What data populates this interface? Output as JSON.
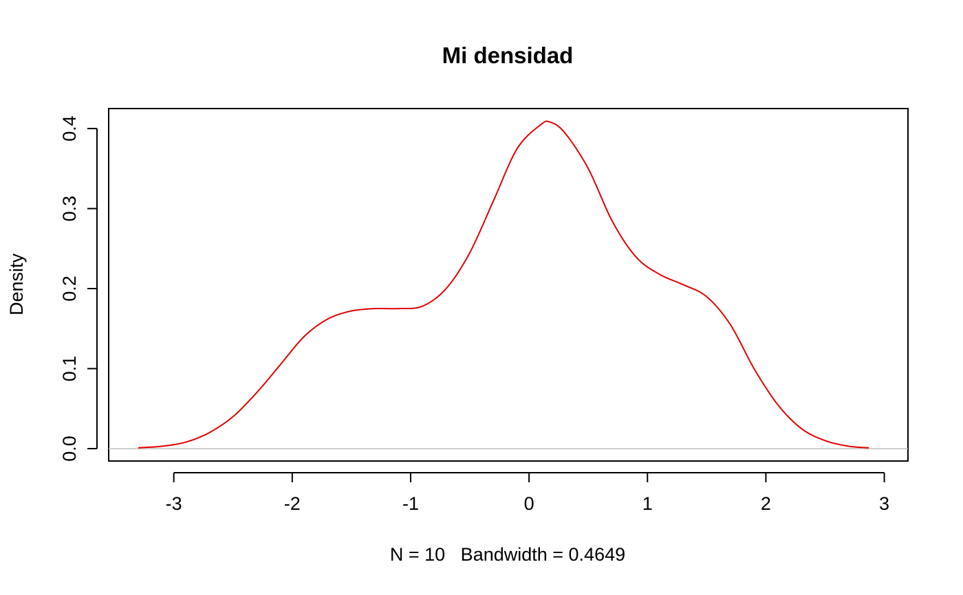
{
  "chart_data": {
    "type": "line",
    "title": "Mi densidad",
    "xlabel": "N = 10   Bandwidth = 0.4649",
    "ylabel": "Density",
    "xlim": [
      -3.55,
      3.2
    ],
    "ylim": [
      -0.0155,
      0.425
    ],
    "x_ticks": [
      -3,
      -2,
      -1,
      0,
      1,
      2,
      3
    ],
    "x_tick_labels": [
      "-3",
      "-2",
      "-1",
      "0",
      "1",
      "2",
      "3"
    ],
    "y_ticks": [
      0.0,
      0.1,
      0.2,
      0.3,
      0.4
    ],
    "y_tick_labels": [
      "0.0",
      "0.1",
      "0.2",
      "0.3",
      "0.4"
    ],
    "reference_line_y": 0,
    "grid": false,
    "colors": {
      "curve": "#e00000",
      "zero_line": "#bebebe",
      "axes": "#000000"
    },
    "series": [
      {
        "x": [
          -3.3,
          -3.1,
          -2.9,
          -2.7,
          -2.5,
          -2.3,
          -2.1,
          -1.9,
          -1.7,
          -1.5,
          -1.3,
          -1.1,
          -0.9,
          -0.7,
          -0.5,
          -0.3,
          -0.1,
          0.1,
          0.18,
          0.3,
          0.5,
          0.7,
          0.9,
          1.1,
          1.3,
          1.5,
          1.7,
          1.9,
          2.1,
          2.3,
          2.5,
          2.7,
          2.87
        ],
        "y": [
          0.001,
          0.003,
          0.008,
          0.02,
          0.04,
          0.07,
          0.105,
          0.14,
          0.162,
          0.172,
          0.175,
          0.175,
          0.178,
          0.2,
          0.245,
          0.31,
          0.375,
          0.405,
          0.408,
          0.395,
          0.35,
          0.285,
          0.24,
          0.218,
          0.205,
          0.19,
          0.155,
          0.1,
          0.055,
          0.025,
          0.01,
          0.003,
          0.001
        ]
      }
    ]
  }
}
